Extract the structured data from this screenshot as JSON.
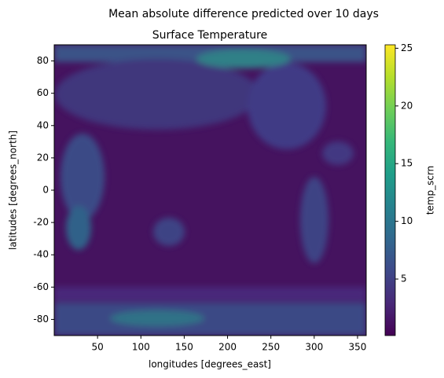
{
  "chart_data": {
    "type": "heatmap",
    "title": "Mean absolute difference predicted over 10 days",
    "subtitle": "Surface Temperature",
    "xlabel": "longitudes [degrees_east]",
    "ylabel": "latitudes [degrees_north]",
    "xlim": [
      0,
      360
    ],
    "ylim": [
      -90,
      90
    ],
    "xticks": [
      50,
      100,
      150,
      200,
      250,
      300,
      350
    ],
    "yticks": [
      -80,
      -60,
      -40,
      -20,
      0,
      20,
      40,
      60,
      80
    ],
    "colorbar": {
      "label": "temp_scrn",
      "lim": [
        0.1,
        25.3
      ],
      "ticks": [
        5,
        10,
        15,
        20,
        25
      ],
      "colormap": "viridis"
    }
  }
}
